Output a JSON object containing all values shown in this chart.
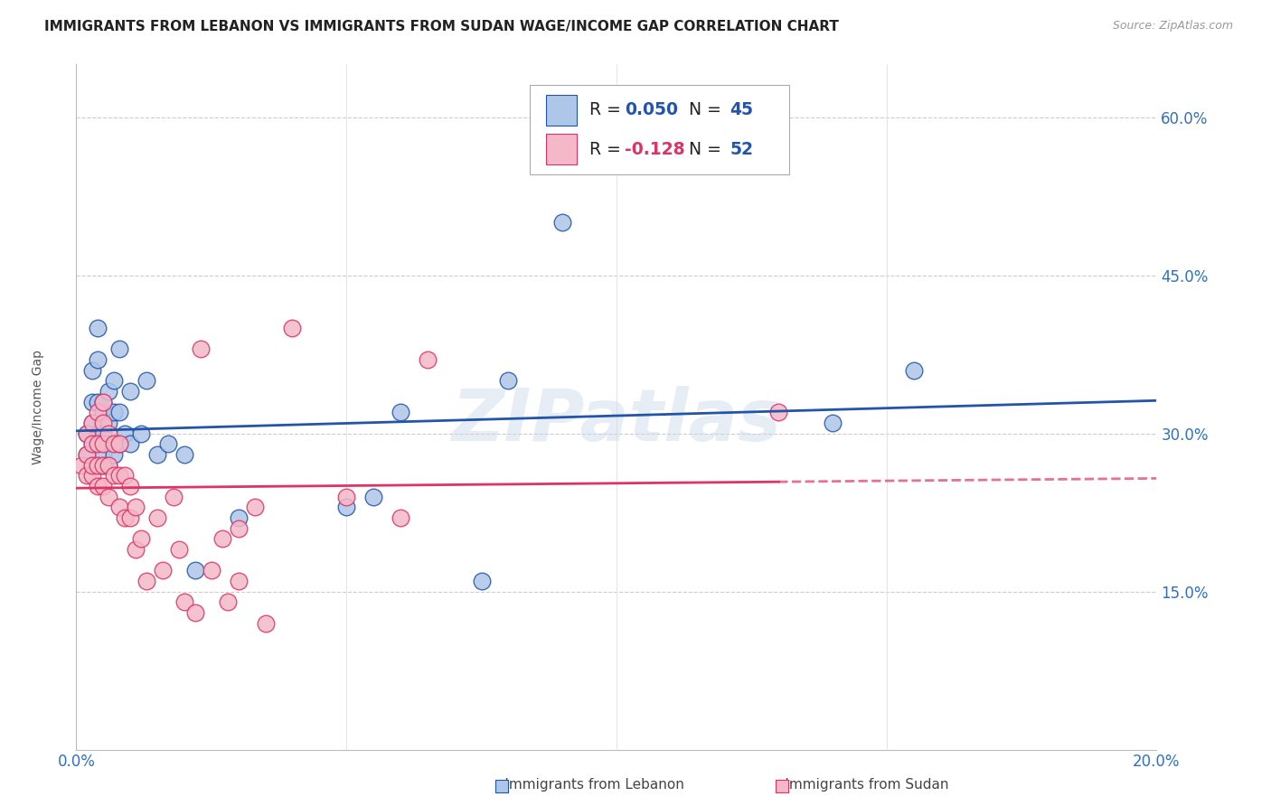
{
  "title": "IMMIGRANTS FROM LEBANON VS IMMIGRANTS FROM SUDAN WAGE/INCOME GAP CORRELATION CHART",
  "source": "Source: ZipAtlas.com",
  "ylabel": "Wage/Income Gap",
  "title_fontsize": 11,
  "source_fontsize": 9,
  "label_fontsize": 10,
  "xmin": 0.0,
  "xmax": 0.2,
  "ymin": 0.0,
  "ymax": 0.65,
  "yticks": [
    0.15,
    0.3,
    0.45,
    0.6
  ],
  "ytick_labels": [
    "15.0%",
    "30.0%",
    "45.0%",
    "60.0%"
  ],
  "xticks": [
    0.0,
    0.05,
    0.1,
    0.15,
    0.2
  ],
  "xtick_labels": [
    "0.0%",
    "",
    "",
    "",
    "20.0%"
  ],
  "lebanon_color": "#aec6e8",
  "sudan_color": "#f4b8c8",
  "lebanon_line_color": "#2255aa",
  "sudan_line_color": "#dd3366",
  "tick_color": "#3070c0",
  "grid_color": "#cccccc",
  "legend_R_lebanon": "0.050",
  "legend_N_lebanon": "45",
  "legend_R_sudan": "-0.128",
  "legend_N_sudan": "52",
  "watermark": "ZIPatlas",
  "sudan_line_solid_end": 0.13,
  "lebanon_x": [
    0.002,
    0.002,
    0.003,
    0.003,
    0.003,
    0.003,
    0.003,
    0.004,
    0.004,
    0.004,
    0.004,
    0.004,
    0.005,
    0.005,
    0.005,
    0.005,
    0.005,
    0.006,
    0.006,
    0.006,
    0.006,
    0.007,
    0.007,
    0.007,
    0.008,
    0.008,
    0.008,
    0.009,
    0.01,
    0.01,
    0.012,
    0.013,
    0.015,
    0.017,
    0.02,
    0.022,
    0.03,
    0.05,
    0.055,
    0.06,
    0.075,
    0.08,
    0.09,
    0.14,
    0.155
  ],
  "lebanon_y": [
    0.28,
    0.3,
    0.27,
    0.29,
    0.31,
    0.33,
    0.36,
    0.27,
    0.3,
    0.33,
    0.37,
    0.4,
    0.27,
    0.28,
    0.3,
    0.32,
    0.33,
    0.27,
    0.29,
    0.31,
    0.34,
    0.28,
    0.32,
    0.35,
    0.29,
    0.32,
    0.38,
    0.3,
    0.29,
    0.34,
    0.3,
    0.35,
    0.28,
    0.29,
    0.28,
    0.17,
    0.22,
    0.23,
    0.24,
    0.32,
    0.16,
    0.35,
    0.5,
    0.31,
    0.36
  ],
  "sudan_x": [
    0.001,
    0.002,
    0.002,
    0.002,
    0.003,
    0.003,
    0.003,
    0.003,
    0.004,
    0.004,
    0.004,
    0.004,
    0.005,
    0.005,
    0.005,
    0.005,
    0.005,
    0.006,
    0.006,
    0.006,
    0.007,
    0.007,
    0.008,
    0.008,
    0.008,
    0.009,
    0.009,
    0.01,
    0.01,
    0.011,
    0.011,
    0.012,
    0.013,
    0.015,
    0.016,
    0.018,
    0.019,
    0.02,
    0.022,
    0.023,
    0.025,
    0.027,
    0.028,
    0.03,
    0.03,
    0.033,
    0.035,
    0.04,
    0.05,
    0.06,
    0.065,
    0.13
  ],
  "sudan_y": [
    0.27,
    0.26,
    0.28,
    0.3,
    0.26,
    0.27,
    0.29,
    0.31,
    0.25,
    0.27,
    0.29,
    0.32,
    0.25,
    0.27,
    0.29,
    0.31,
    0.33,
    0.24,
    0.27,
    0.3,
    0.26,
    0.29,
    0.23,
    0.26,
    0.29,
    0.22,
    0.26,
    0.22,
    0.25,
    0.19,
    0.23,
    0.2,
    0.16,
    0.22,
    0.17,
    0.24,
    0.19,
    0.14,
    0.13,
    0.38,
    0.17,
    0.2,
    0.14,
    0.16,
    0.21,
    0.23,
    0.12,
    0.4,
    0.24,
    0.22,
    0.37,
    0.32
  ]
}
